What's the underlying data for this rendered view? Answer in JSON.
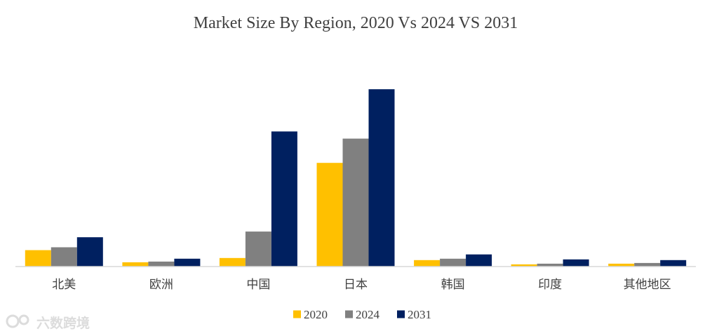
{
  "chart_data": {
    "type": "bar",
    "title": "Market Size By Region, 2020 Vs 2024 VS 2031",
    "categories": [
      "北美",
      "欧洲",
      "中国",
      "日本",
      "韩国",
      "印度",
      "其他地区"
    ],
    "series": [
      {
        "name": "2020",
        "color": "#FFC000",
        "values": [
          23,
          6,
          12,
          145,
          9,
          3,
          4
        ]
      },
      {
        "name": "2024",
        "color": "#808080",
        "values": [
          27,
          7,
          49,
          179,
          11,
          4,
          5
        ]
      },
      {
        "name": "2031",
        "color": "#002060",
        "values": [
          41,
          11,
          189,
          248,
          17,
          10,
          9
        ]
      }
    ],
    "ylim": [
      0,
      260
    ],
    "xlabel": "",
    "ylabel": "",
    "grid": false,
    "legend_position": "bottom-center"
  },
  "watermark": {
    "text": "六数跨境"
  }
}
